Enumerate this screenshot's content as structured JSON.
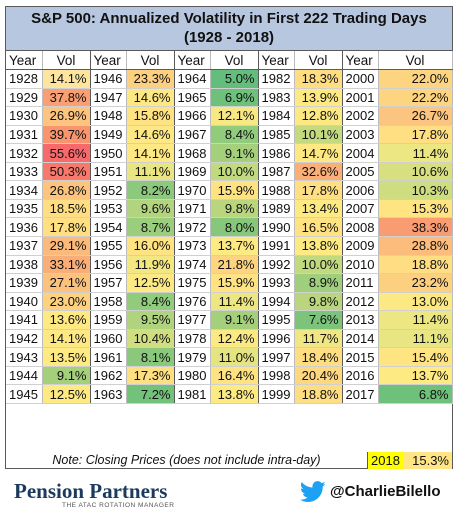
{
  "title": "S&P 500: Annualized Volatility in First 222 Trading Days",
  "subtitle": "(1928 - 2018)",
  "headers": [
    "Year",
    "Vol",
    "Year",
    "Vol",
    "Year",
    "Vol",
    "Year",
    "Vol",
    "Year",
    "Vol"
  ],
  "columns": [
    [
      [
        "1928",
        "14.1%",
        "#fde5a0"
      ],
      [
        "1929",
        "37.8%",
        "#f99f73"
      ],
      [
        "1930",
        "26.9%",
        "#fcc47f"
      ],
      [
        "1931",
        "39.7%",
        "#f8956f"
      ],
      [
        "1932",
        "55.6%",
        "#f8696b"
      ],
      [
        "1933",
        "50.3%",
        "#f8786c"
      ],
      [
        "1934",
        "26.8%",
        "#fcc47f"
      ],
      [
        "1935",
        "18.5%",
        "#ffdd82"
      ],
      [
        "1936",
        "17.8%",
        "#ffdf82"
      ],
      [
        "1937",
        "29.1%",
        "#fbba7b"
      ],
      [
        "1938",
        "33.1%",
        "#faae77"
      ],
      [
        "1939",
        "27.1%",
        "#fbc27e"
      ],
      [
        "1940",
        "23.0%",
        "#fdd180"
      ],
      [
        "1941",
        "13.6%",
        "#fee982"
      ],
      [
        "1942",
        "14.1%",
        "#fde883"
      ],
      [
        "1943",
        "13.5%",
        "#feea83"
      ],
      [
        "1944",
        "9.1%",
        "#a4d07c"
      ],
      [
        "1945",
        "12.5%",
        "#fee983"
      ]
    ],
    [
      [
        "1946",
        "23.3%",
        "#fdd080"
      ],
      [
        "1947",
        "14.6%",
        "#fee883"
      ],
      [
        "1948",
        "15.8%",
        "#ffe382"
      ],
      [
        "1949",
        "14.6%",
        "#fee883"
      ],
      [
        "1950",
        "14.1%",
        "#fde883"
      ],
      [
        "1951",
        "11.1%",
        "#e8e583"
      ],
      [
        "1952",
        "8.2%",
        "#8cc97c"
      ],
      [
        "1953",
        "9.6%",
        "#b2d47e"
      ],
      [
        "1954",
        "8.7%",
        "#9acd7c"
      ],
      [
        "1955",
        "16.0%",
        "#ffe382"
      ],
      [
        "1956",
        "11.9%",
        "#f3e783"
      ],
      [
        "1957",
        "12.5%",
        "#fce983"
      ],
      [
        "1958",
        "8.4%",
        "#91cb7c"
      ],
      [
        "1959",
        "9.5%",
        "#b0d47e"
      ],
      [
        "1960",
        "10.4%",
        "#d1de80"
      ],
      [
        "1961",
        "8.1%",
        "#8ac97c"
      ],
      [
        "1962",
        "17.3%",
        "#fee082"
      ],
      [
        "1963",
        "7.2%",
        "#72c27b"
      ]
    ],
    [
      [
        "1964",
        "5.0%",
        "#63be7b"
      ],
      [
        "1965",
        "6.9%",
        "#6ec17b"
      ],
      [
        "1966",
        "12.1%",
        "#f7e883"
      ],
      [
        "1967",
        "8.4%",
        "#91cb7c"
      ],
      [
        "1968",
        "9.1%",
        "#a4d07c"
      ],
      [
        "1969",
        "10.0%",
        "#c1d97f"
      ],
      [
        "1970",
        "15.9%",
        "#ffe382"
      ],
      [
        "1971",
        "9.8%",
        "#b9d67e"
      ],
      [
        "1972",
        "8.0%",
        "#86c77c"
      ],
      [
        "1973",
        "13.7%",
        "#feea83"
      ],
      [
        "1974",
        "21.8%",
        "#fdd580"
      ],
      [
        "1975",
        "15.9%",
        "#ffe382"
      ],
      [
        "1976",
        "11.4%",
        "#ece683"
      ],
      [
        "1977",
        "9.1%",
        "#a4d07c"
      ],
      [
        "1978",
        "12.4%",
        "#fbe983"
      ],
      [
        "1979",
        "11.0%",
        "#e5e483"
      ],
      [
        "1980",
        "16.4%",
        "#ffe282"
      ],
      [
        "1981",
        "13.8%",
        "#feea83"
      ]
    ],
    [
      [
        "1982",
        "18.3%",
        "#ffde82"
      ],
      [
        "1983",
        "13.9%",
        "#feea83"
      ],
      [
        "1984",
        "12.8%",
        "#fde983"
      ],
      [
        "1985",
        "10.1%",
        "#c4da7f"
      ],
      [
        "1986",
        "14.7%",
        "#fee883"
      ],
      [
        "1987",
        "32.6%",
        "#faaf77"
      ],
      [
        "1988",
        "17.8%",
        "#ffdf82"
      ],
      [
        "1989",
        "13.4%",
        "#feea83"
      ],
      [
        "1990",
        "16.5%",
        "#ffe282"
      ],
      [
        "1991",
        "13.8%",
        "#feea83"
      ],
      [
        "1992",
        "10.0%",
        "#c1d97f"
      ],
      [
        "1993",
        "8.9%",
        "#9fcf7d"
      ],
      [
        "1994",
        "9.8%",
        "#b9d67e"
      ],
      [
        "1995",
        "7.6%",
        "#7cc47b"
      ],
      [
        "1996",
        "11.7%",
        "#f0e683"
      ],
      [
        "1997",
        "18.4%",
        "#ffde82"
      ],
      [
        "1998",
        "20.4%",
        "#fdd880"
      ],
      [
        "1999",
        "18.8%",
        "#ffdd82"
      ]
    ],
    [
      [
        "2000",
        "22.0%",
        "#fdd580"
      ],
      [
        "2001",
        "22.2%",
        "#fdd480"
      ],
      [
        "2002",
        "26.7%",
        "#fcc57f"
      ],
      [
        "2003",
        "17.8%",
        "#ffdf82"
      ],
      [
        "2004",
        "11.4%",
        "#ece683"
      ],
      [
        "2005",
        "10.6%",
        "#d7df81"
      ],
      [
        "2006",
        "10.3%",
        "#cddd80"
      ],
      [
        "2007",
        "15.3%",
        "#ffe582"
      ],
      [
        "2008",
        "38.3%",
        "#f99c72"
      ],
      [
        "2009",
        "28.8%",
        "#fbbc7c"
      ],
      [
        "2010",
        "18.8%",
        "#ffdd82"
      ],
      [
        "2011",
        "23.2%",
        "#fdd080"
      ],
      [
        "2012",
        "13.0%",
        "#fde983"
      ],
      [
        "2013",
        "11.4%",
        "#ece683"
      ],
      [
        "2014",
        "11.1%",
        "#e8e583"
      ],
      [
        "2015",
        "15.4%",
        "#ffe582"
      ],
      [
        "2016",
        "13.7%",
        "#feea83"
      ],
      [
        "2017",
        "6.8%",
        "#6ec17b"
      ]
    ]
  ],
  "note": "Note: Closing Prices (does not include intra-day)",
  "note_year": "2018",
  "note_vol": "15.3%",
  "footer": {
    "brand": "Pension Partners",
    "tagline": "THE ATAC ROTATION MANAGER",
    "handle": "@CharlieBilello",
    "icon": "twitter-bird-icon"
  }
}
